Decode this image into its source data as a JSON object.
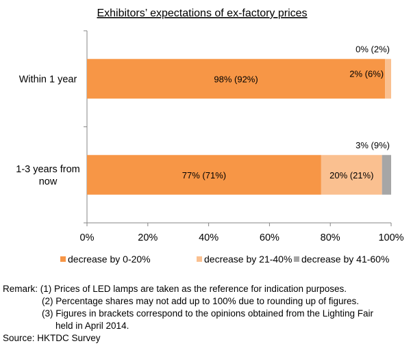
{
  "chart_data": {
    "type": "bar",
    "orientation": "horizontal",
    "stacked": true,
    "title": "Exhibitors’ expectations of ex-factory prices",
    "categories": [
      "Within 1 year",
      "1-3 years from now"
    ],
    "series": [
      {
        "name": "decrease by 0-20%",
        "values": [
          98,
          77
        ],
        "labels": [
          "98% (92%)",
          "77% (71%)"
        ],
        "color": "#F79646"
      },
      {
        "name": "decrease by 21-40%",
        "values": [
          2,
          20
        ],
        "labels": [
          "2% (6%)",
          "20% (21%)"
        ],
        "color": "#FAC090"
      },
      {
        "name": "decrease by 41-60%",
        "values": [
          0,
          3
        ],
        "labels": [
          "0% (2%)",
          "3% (9%)"
        ],
        "color": "#A6A6A6"
      }
    ],
    "xlim": [
      0,
      100
    ],
    "xticks": [
      "0%",
      "20%",
      "40%",
      "60%",
      "80%",
      "100%"
    ],
    "legend_position": "bottom",
    "grid": false
  },
  "notes": {
    "remark_label": "Remark:",
    "items": [
      "(1) Prices of LED lamps are taken as the reference for indication purposes.",
      "(2) Percentage shares may not add up to 100% due to rounding up of figures.",
      "(3) Figures in brackets correspond to the opinions obtained from the Lighting Fair",
      "held in April 2014."
    ],
    "source": "Source: HKTDC Survey"
  }
}
